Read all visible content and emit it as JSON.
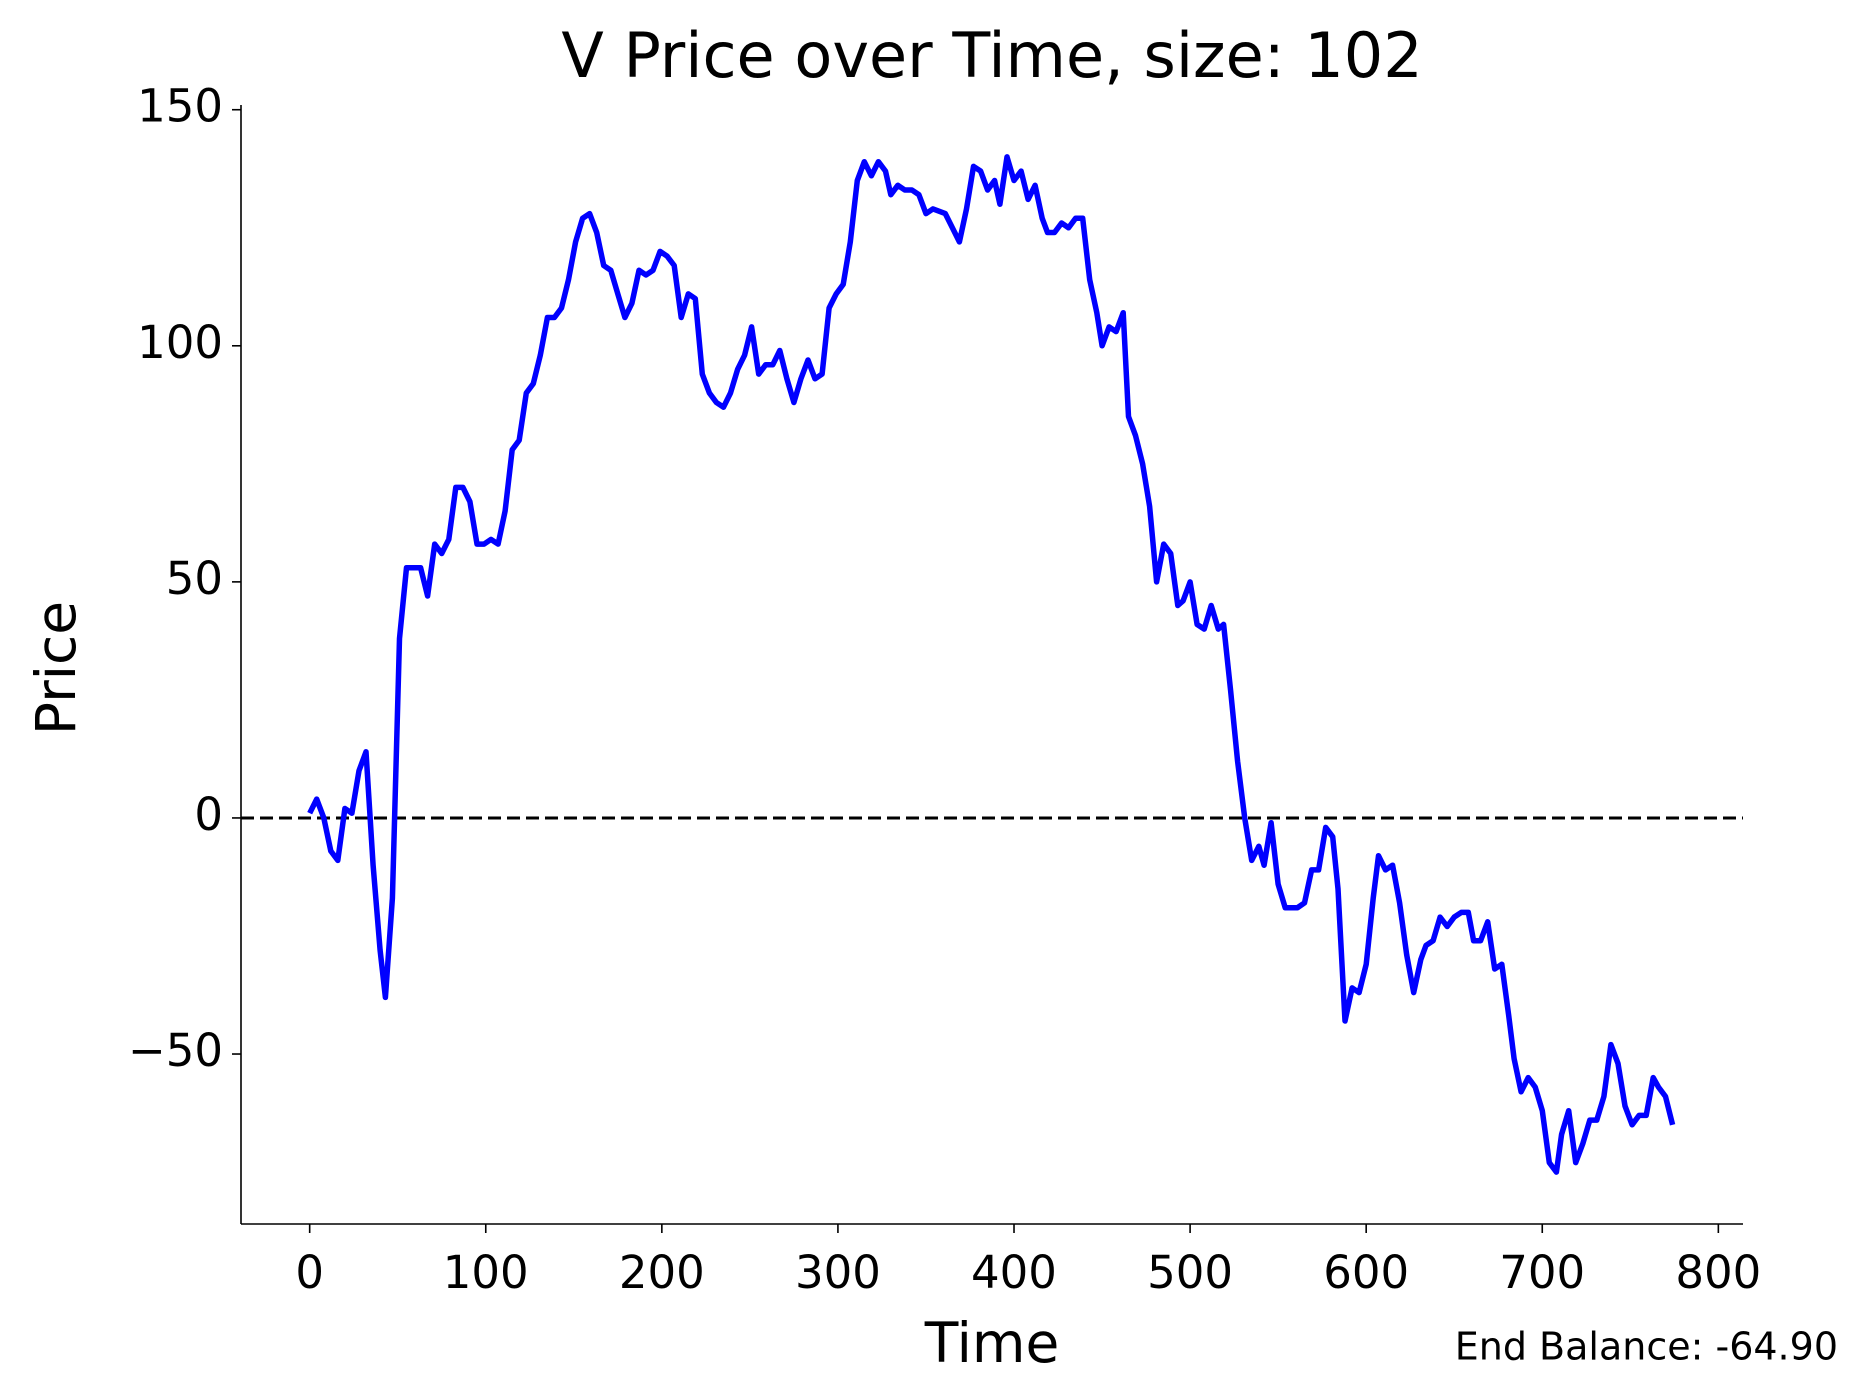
{
  "chart_data": {
    "type": "line",
    "title": "V Price over Time, size: 102",
    "x_label": "Time",
    "y_label": "Price",
    "annotation": "End Balance: -64.90",
    "xlim": [
      -39,
      814
    ],
    "ylim": [
      -86,
      151
    ],
    "xticks": [
      0,
      100,
      200,
      300,
      400,
      500,
      600,
      700,
      800
    ],
    "yticks": [
      {
        "value": -50,
        "label": "−50"
      },
      0,
      50,
      100,
      150
    ],
    "reference_line": {
      "y": 0,
      "style": "dashed",
      "color": "#000000"
    },
    "series": [
      {
        "name": "Price",
        "color": "#0000ff",
        "x": [
          0,
          4,
          8,
          12,
          16,
          20,
          24,
          28,
          32,
          36,
          40,
          43,
          47,
          51,
          55,
          63,
          67,
          71,
          75,
          79,
          83,
          87,
          91,
          95,
          99,
          103,
          107,
          111,
          115,
          119,
          123,
          127,
          131,
          135,
          139,
          143,
          147,
          151,
          155,
          159,
          163,
          167,
          171,
          175,
          179,
          183,
          187,
          191,
          195,
          199,
          203,
          207,
          211,
          215,
          219,
          223,
          227,
          231,
          235,
          239,
          243,
          247,
          251,
          255,
          259,
          263,
          267,
          271,
          275,
          279,
          283,
          287,
          291,
          295,
          299,
          303,
          307,
          311,
          315,
          319,
          323,
          327,
          330,
          334,
          338,
          342,
          346,
          350,
          354,
          361,
          365,
          369,
          373,
          377,
          381,
          385,
          389,
          392,
          396,
          400,
          404,
          408,
          412,
          416,
          419,
          423,
          427,
          431,
          435,
          439,
          443,
          447,
          450,
          454,
          458,
          462,
          465,
          469,
          473,
          477,
          481,
          485,
          489,
          493,
          496,
          500,
          504,
          508,
          512,
          516,
          519,
          523,
          527,
          531,
          535,
          539,
          542,
          546,
          550,
          554,
          558,
          561,
          565,
          569,
          573,
          577,
          581,
          584,
          588,
          592,
          596,
          600,
          604,
          607,
          611,
          615,
          619,
          623,
          627,
          631,
          634,
          638,
          642,
          646,
          650,
          654,
          658,
          661,
          665,
          669,
          673,
          677,
          681,
          684,
          688,
          692,
          696,
          700,
          704,
          708,
          711,
          715,
          719,
          723,
          727,
          731,
          735,
          739,
          743,
          747,
          751,
          755,
          759,
          763,
          766,
          770,
          774
        ],
        "values": [
          1,
          4,
          0,
          -7,
          -9,
          2,
          1,
          10,
          14,
          -10,
          -28,
          -38,
          -17,
          38,
          53,
          53,
          47,
          58,
          56,
          59,
          70,
          70,
          67,
          58,
          58,
          59,
          58,
          65,
          78,
          80,
          90,
          92,
          98,
          106,
          106,
          108,
          114,
          122,
          127,
          128,
          124,
          117,
          116,
          111,
          106,
          109,
          116,
          115,
          116,
          120,
          119,
          117,
          106,
          111,
          110,
          94,
          90,
          88,
          87,
          90,
          95,
          98,
          104,
          94,
          96,
          96,
          99,
          93,
          88,
          93,
          97,
          93,
          94,
          108,
          111,
          113,
          122,
          135,
          139,
          136,
          139,
          137,
          132,
          134,
          133,
          133,
          132,
          128,
          129,
          128,
          125,
          122,
          129,
          138,
          137,
          133,
          135,
          130,
          140,
          135,
          137,
          131,
          134,
          127,
          124,
          124,
          126,
          125,
          127,
          127,
          114,
          107,
          100,
          104,
          103,
          107,
          85,
          81,
          75,
          66,
          50,
          58,
          56,
          45,
          46,
          50,
          41,
          40,
          45,
          40,
          41,
          27,
          12,
          0,
          -9,
          -6,
          -10,
          -1,
          -14,
          -19,
          -19,
          -19,
          -18,
          -11,
          -11,
          -2,
          -4,
          -15,
          -43,
          -36,
          -37,
          -31,
          -17,
          -8,
          -11,
          -10,
          -18,
          -29,
          -37,
          -30,
          -27,
          -26,
          -21,
          -23,
          -21,
          -20,
          -20,
          -26,
          -26,
          -22,
          -32,
          -31,
          -42,
          -51,
          -58,
          -55,
          -57,
          -62,
          -73,
          -75,
          -67,
          -62,
          -73,
          -69,
          -64,
          -64,
          -59,
          -48,
          -52,
          -61,
          -65,
          -63,
          -63,
          -55,
          -57,
          -59,
          -65
        ]
      }
    ]
  }
}
